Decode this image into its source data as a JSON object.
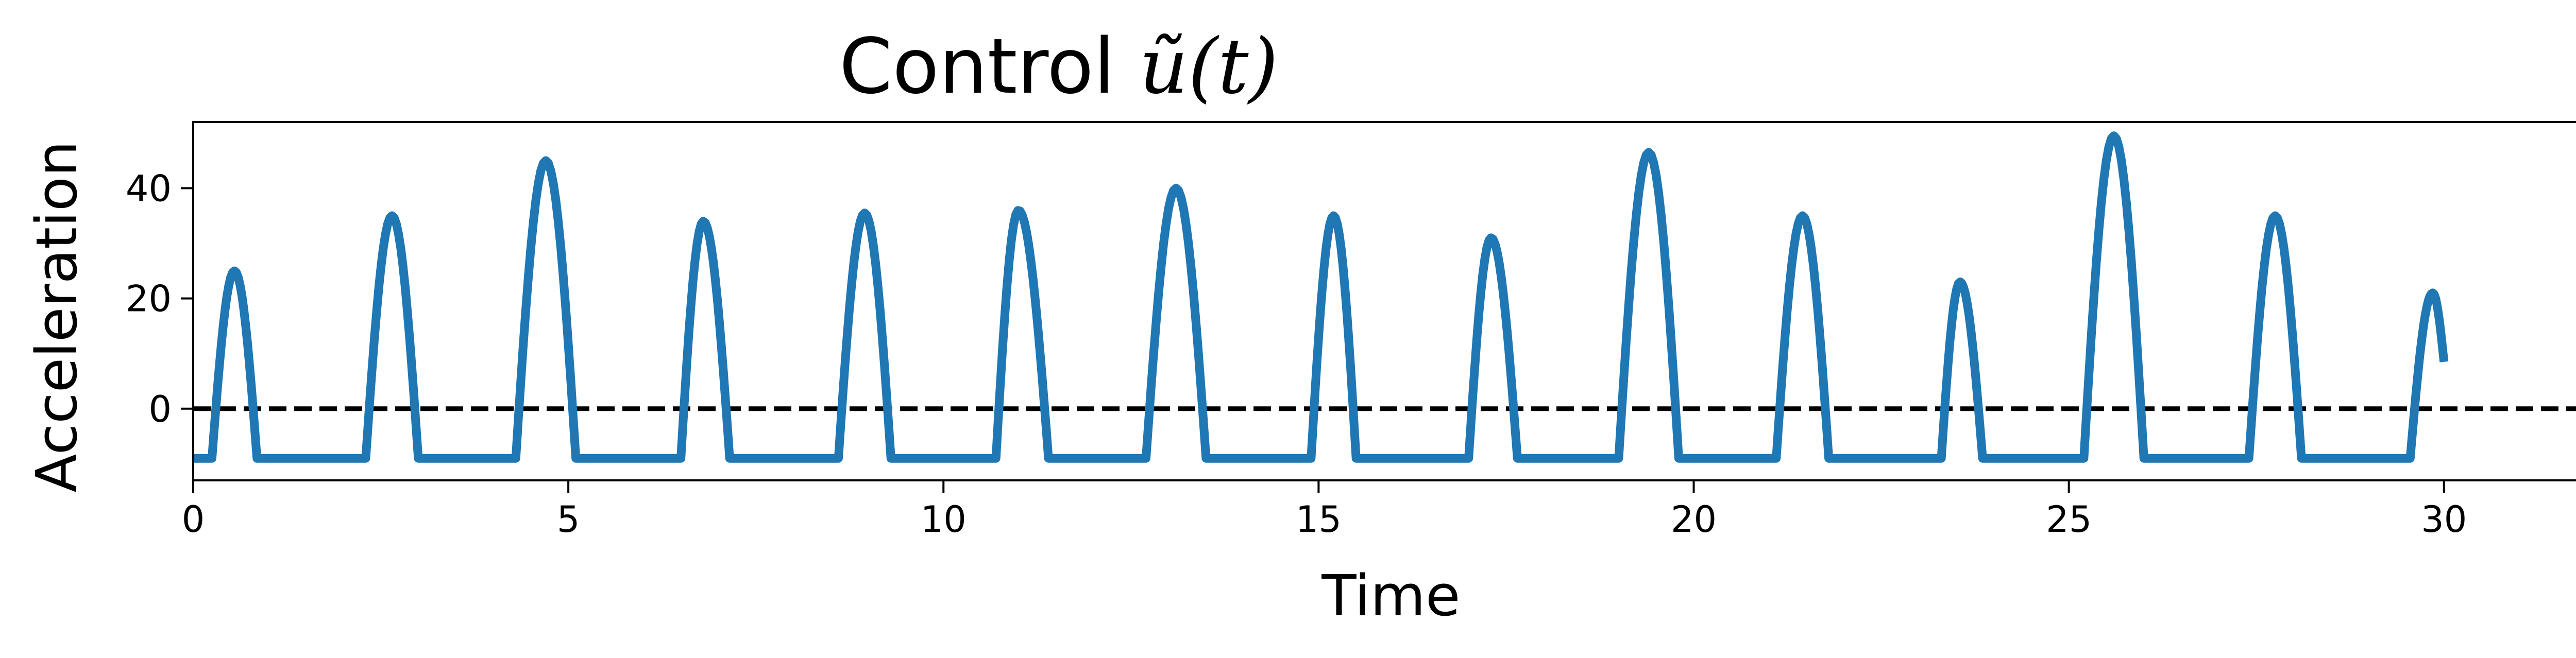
{
  "chart_data": {
    "type": "line",
    "title": "Control ũ(t)",
    "title_parts": {
      "prefix": "Control ",
      "math": "ũ(t)"
    },
    "xlabel": "Time",
    "ylabel": "Acceleration",
    "xlim": [
      0,
      32
    ],
    "ylim": [
      -13,
      52
    ],
    "xticks": [
      0,
      5,
      10,
      15,
      20,
      25,
      30
    ],
    "yticks": [
      0,
      20,
      40
    ],
    "grid": false,
    "legend": "none",
    "reference_line": {
      "y": 0,
      "style": "dashed",
      "color": "#000000"
    },
    "series": [
      {
        "color": "#1f77b4",
        "baseline": -9,
        "x_end": 30.0,
        "y_end": 8.5,
        "pulses": [
          {
            "start": 0.25,
            "peak_x": 0.55,
            "peak": 25,
            "end": 0.85
          },
          {
            "start": 2.3,
            "peak_x": 2.65,
            "peak": 35,
            "end": 3.0
          },
          {
            "start": 4.3,
            "peak_x": 4.7,
            "peak": 45,
            "end": 5.1
          },
          {
            "start": 6.5,
            "peak_x": 6.8,
            "peak": 34,
            "end": 7.15
          },
          {
            "start": 8.6,
            "peak_x": 8.95,
            "peak": 35.5,
            "end": 9.3
          },
          {
            "start": 10.7,
            "peak_x": 11.0,
            "peak": 36,
            "end": 11.4
          },
          {
            "start": 12.7,
            "peak_x": 13.1,
            "peak": 40,
            "end": 13.5
          },
          {
            "start": 14.9,
            "peak_x": 15.2,
            "peak": 35,
            "end": 15.5
          },
          {
            "start": 17.0,
            "peak_x": 17.3,
            "peak": 31,
            "end": 17.65
          },
          {
            "start": 19.0,
            "peak_x": 19.4,
            "peak": 46.5,
            "end": 19.8
          },
          {
            "start": 21.1,
            "peak_x": 21.45,
            "peak": 35,
            "end": 21.8
          },
          {
            "start": 23.3,
            "peak_x": 23.55,
            "peak": 23,
            "end": 23.85
          },
          {
            "start": 25.2,
            "peak_x": 25.6,
            "peak": 49.5,
            "end": 26.0
          },
          {
            "start": 27.4,
            "peak_x": 27.75,
            "peak": 35,
            "end": 28.1
          },
          {
            "start": 29.55,
            "peak_x": 29.85,
            "peak": 21,
            "end": 30.0
          }
        ]
      }
    ]
  }
}
